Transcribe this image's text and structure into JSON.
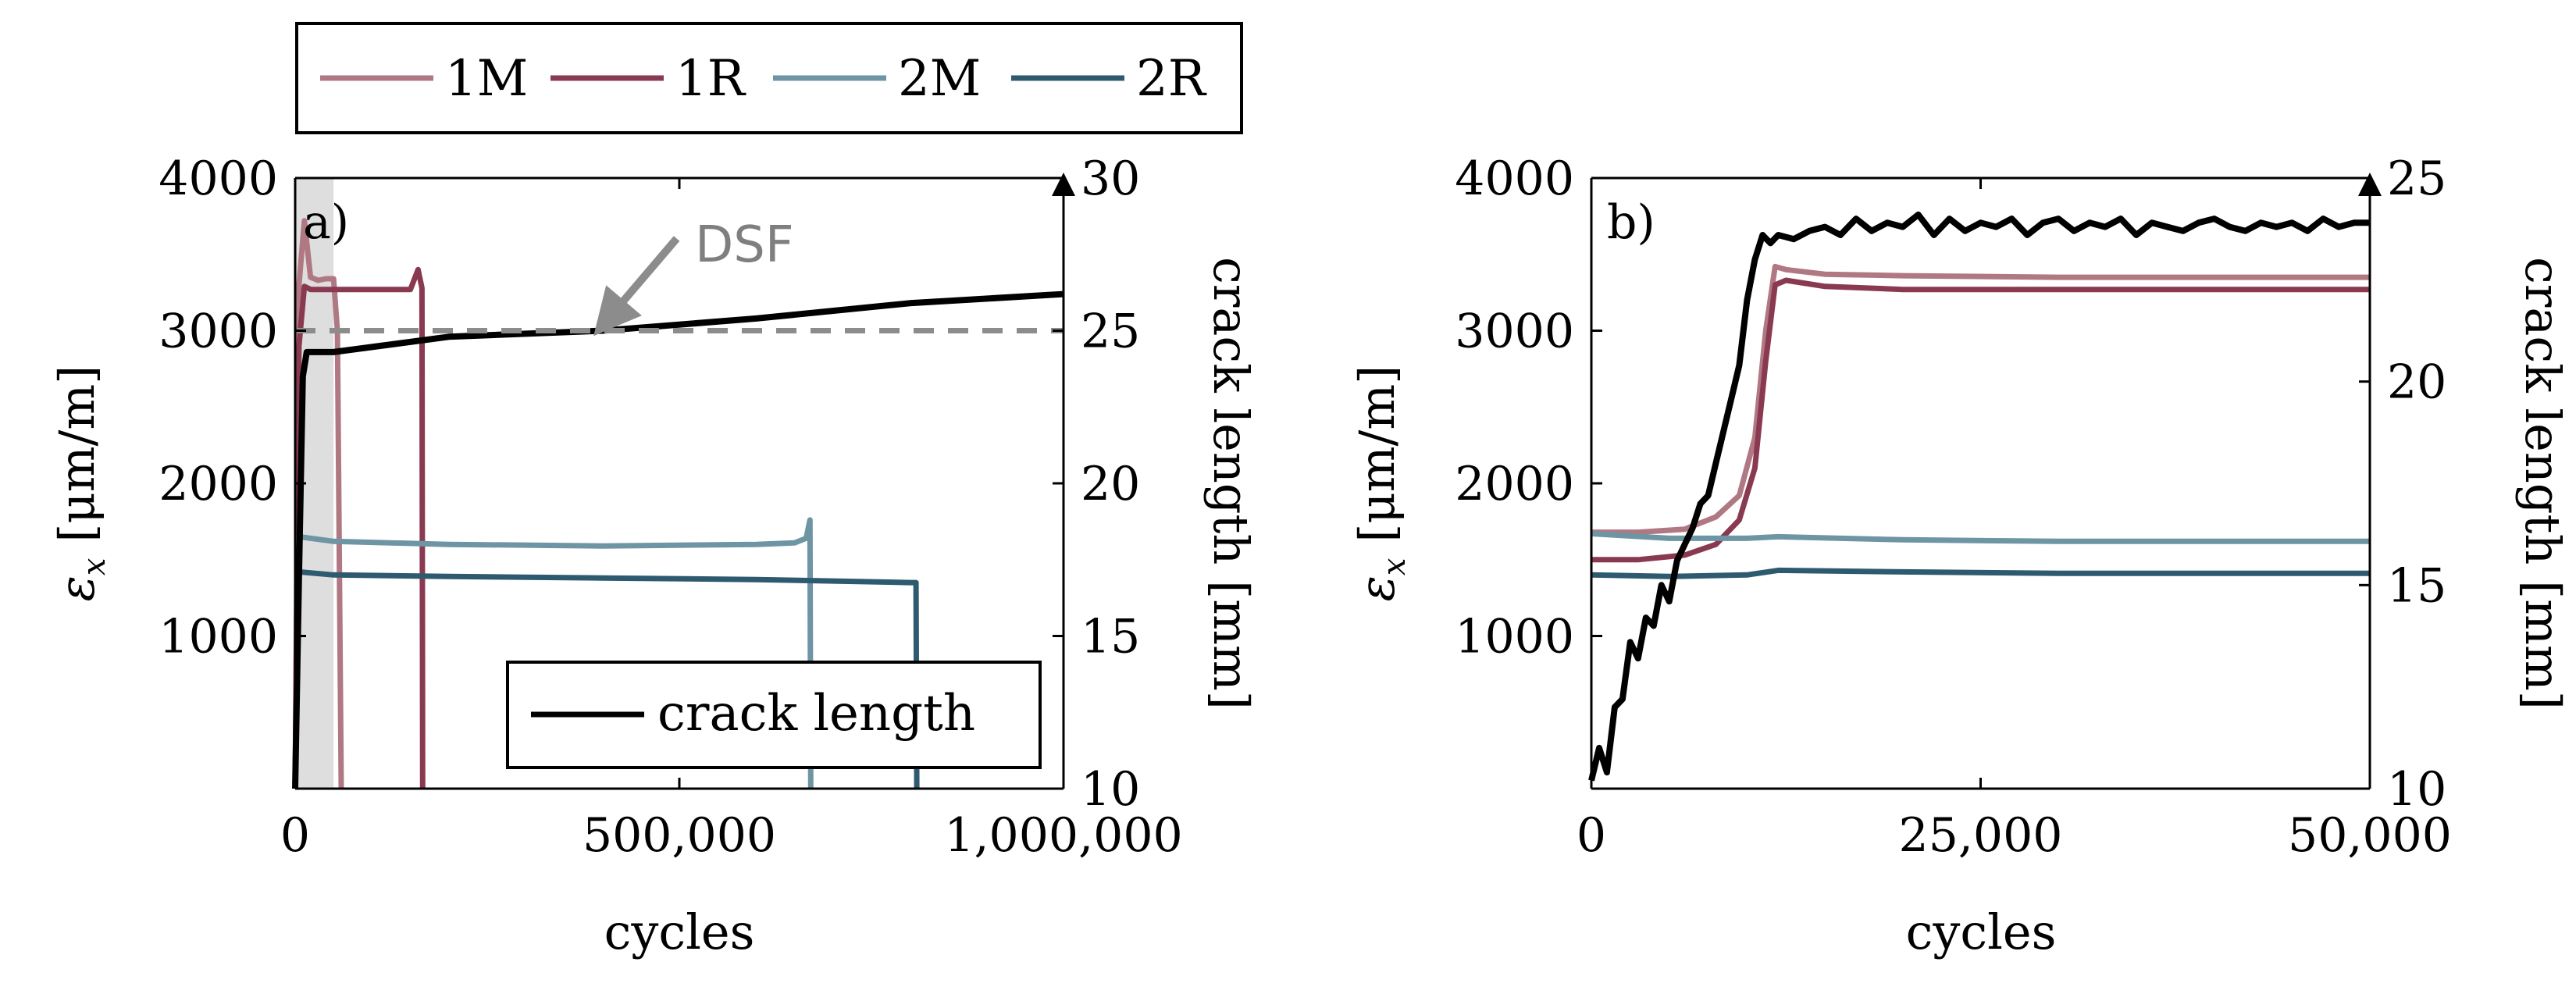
{
  "colors": {
    "1M": "#b07882",
    "1R": "#8a3a50",
    "2M": "#6e95a4",
    "2R": "#2e5a70",
    "crack": "#000000",
    "dsf": "#8c8c8c",
    "shade": "#dedede"
  },
  "legend_top": {
    "items": [
      {
        "key": "1M",
        "label": "1M"
      },
      {
        "key": "1R",
        "label": "1R"
      },
      {
        "key": "2M",
        "label": "2M"
      },
      {
        "key": "2R",
        "label": "2R"
      }
    ]
  },
  "chart_data": [
    {
      "type": "line",
      "panel_label": "a)",
      "xlabel": "cycles",
      "ylabel_left": "ε_x [μm/m]",
      "ylabel_left_main": "ε",
      "ylabel_left_sub": "x",
      "ylabel_left_unit": " [μm/m]",
      "ylabel_right": "crack length [mm]",
      "xlim": [
        0,
        1000000
      ],
      "ylim_left": [
        0,
        4000
      ],
      "ylim_right": [
        10,
        30
      ],
      "x_ticks": [
        0,
        500000,
        1000000
      ],
      "x_tick_labels": [
        "0",
        "500,000",
        "1,000,000"
      ],
      "y_left_ticks": [
        1000,
        2000,
        3000,
        4000
      ],
      "y_left_tick_labels": [
        "1000",
        "2000",
        "3000",
        "4000"
      ],
      "y_right_ticks": [
        10,
        15,
        20,
        25,
        30
      ],
      "y_right_tick_labels": [
        "10",
        "15",
        "20",
        "25",
        "30"
      ],
      "shaded_region_x": [
        0,
        50000
      ],
      "annotation": {
        "text": "DSF",
        "dsf_level_mm": 25,
        "arrow_x": 400000
      },
      "legend_inner": {
        "label": "crack length",
        "placement": "bottom-right"
      },
      "series": [
        {
          "name": "1M",
          "x": [
            0,
            5000,
            12000,
            20000,
            30000,
            40000,
            50000,
            55000,
            60000
          ],
          "y": [
            0,
            3300,
            3720,
            3350,
            3330,
            3340,
            3340,
            3000,
            0
          ]
        },
        {
          "name": "1R",
          "x": [
            0,
            5000,
            12000,
            20000,
            50000,
            100000,
            150000,
            160000,
            165000,
            166000
          ],
          "y": [
            0,
            2900,
            3290,
            3270,
            3270,
            3270,
            3270,
            3400,
            3280,
            0
          ]
        },
        {
          "name": "2M",
          "x": [
            0,
            5000,
            50000,
            200000,
            400000,
            600000,
            650000,
            665000,
            670000,
            671000
          ],
          "y": [
            0,
            1650,
            1620,
            1600,
            1590,
            1600,
            1610,
            1640,
            1760,
            0
          ]
        },
        {
          "name": "2R",
          "x": [
            0,
            5000,
            50000,
            200000,
            400000,
            600000,
            700000,
            800000,
            808000,
            809000
          ],
          "y": [
            0,
            1420,
            1400,
            1390,
            1380,
            1370,
            1360,
            1350,
            1350,
            0
          ]
        },
        {
          "name": "crack length",
          "axis": "right",
          "x": [
            0,
            5000,
            10000,
            15000,
            50000,
            200000,
            400000,
            600000,
            800000,
            1000000
          ],
          "y": [
            10,
            17,
            23.5,
            24.3,
            24.3,
            24.8,
            25,
            25.4,
            25.9,
            26.2
          ]
        }
      ]
    },
    {
      "type": "line",
      "panel_label": "b)",
      "xlabel": "cycles",
      "ylabel_left": "ε_x [μm/m]",
      "ylabel_left_main": "ε",
      "ylabel_left_sub": "x",
      "ylabel_left_unit": " [μm/m]",
      "ylabel_right": "crack length [mm]",
      "xlim": [
        0,
        50000
      ],
      "ylim_left": [
        0,
        4000
      ],
      "ylim_right": [
        10,
        25
      ],
      "x_ticks": [
        0,
        25000,
        50000
      ],
      "x_tick_labels": [
        "0",
        "25,000",
        "50,000"
      ],
      "y_left_ticks": [
        1000,
        2000,
        3000,
        4000
      ],
      "y_left_tick_labels": [
        "1000",
        "2000",
        "3000",
        "4000"
      ],
      "y_right_ticks": [
        10,
        15,
        20,
        25
      ],
      "y_right_tick_labels": [
        "10",
        "15",
        "20",
        "25"
      ],
      "series": [
        {
          "name": "1M",
          "x": [
            0,
            3000,
            6000,
            8000,
            9500,
            10500,
            11200,
            11800,
            12500,
            15000,
            20000,
            30000,
            40000,
            50000
          ],
          "y": [
            1680,
            1680,
            1700,
            1780,
            1920,
            2300,
            3000,
            3420,
            3400,
            3370,
            3360,
            3350,
            3350,
            3350
          ]
        },
        {
          "name": "1R",
          "x": [
            0,
            3000,
            6000,
            8000,
            9500,
            10500,
            11200,
            11800,
            12500,
            15000,
            20000,
            30000,
            40000,
            50000
          ],
          "y": [
            1500,
            1500,
            1530,
            1600,
            1760,
            2100,
            2800,
            3300,
            3330,
            3290,
            3270,
            3270,
            3270,
            3270
          ]
        },
        {
          "name": "2M",
          "x": [
            0,
            5000,
            10000,
            12000,
            20000,
            30000,
            40000,
            50000
          ],
          "y": [
            1670,
            1640,
            1640,
            1650,
            1630,
            1620,
            1620,
            1620
          ]
        },
        {
          "name": "2R",
          "x": [
            0,
            5000,
            10000,
            12000,
            20000,
            30000,
            40000,
            50000
          ],
          "y": [
            1400,
            1390,
            1400,
            1430,
            1420,
            1410,
            1410,
            1410
          ]
        },
        {
          "name": "crack length",
          "axis": "right",
          "x": [
            0,
            500,
            1000,
            1500,
            2000,
            2500,
            3000,
            3500,
            4000,
            4500,
            5000,
            5500,
            6000,
            6500,
            7000,
            7500,
            8000,
            8500,
            9000,
            9500,
            10000,
            10500,
            11000,
            11500,
            12000,
            13000,
            14000,
            15000,
            16000,
            17000,
            18000,
            19000,
            20000,
            21000,
            22000,
            23000,
            24000,
            25000,
            26000,
            27000,
            28000,
            29000,
            30000,
            31000,
            32000,
            33000,
            34000,
            35000,
            36000,
            37000,
            38000,
            39000,
            40000,
            41000,
            42000,
            43000,
            44000,
            45000,
            46000,
            47000,
            48000,
            49000,
            50000
          ],
          "y": [
            10.2,
            11.0,
            10.4,
            12.0,
            12.2,
            13.6,
            13.2,
            14.2,
            14.0,
            15.0,
            14.6,
            15.6,
            16.0,
            16.4,
            17.0,
            17.2,
            18.0,
            18.8,
            19.6,
            20.4,
            22.0,
            23.0,
            23.6,
            23.4,
            23.6,
            23.5,
            23.7,
            23.8,
            23.6,
            24.0,
            23.7,
            23.9,
            23.8,
            24.1,
            23.6,
            24.0,
            23.7,
            23.9,
            23.8,
            24.0,
            23.6,
            23.9,
            24.0,
            23.7,
            23.9,
            23.8,
            24.0,
            23.6,
            23.9,
            23.8,
            23.7,
            23.9,
            24.0,
            23.8,
            23.7,
            23.9,
            23.8,
            23.9,
            23.7,
            24.0,
            23.8,
            23.9,
            23.9
          ]
        }
      ]
    }
  ]
}
